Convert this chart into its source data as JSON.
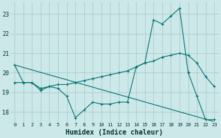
{
  "xlabel": "Humidex (Indice chaleur)",
  "bg_color": "#cce8e8",
  "grid_color": "#aacccc",
  "line_color": "#007070",
  "xlim": [
    -0.5,
    23.5
  ],
  "ylim": [
    17.5,
    23.6
  ],
  "yticks": [
    18,
    19,
    20,
    21,
    22,
    23
  ],
  "xticks": [
    0,
    1,
    2,
    3,
    4,
    5,
    6,
    7,
    8,
    9,
    10,
    11,
    12,
    13,
    14,
    15,
    16,
    17,
    18,
    19,
    20,
    21,
    22,
    23
  ],
  "series": [
    {
      "x": [
        0,
        1,
        2,
        3,
        4,
        5,
        6,
        7,
        8,
        9,
        10,
        11,
        12,
        13,
        14,
        15,
        16,
        17,
        18,
        19,
        20,
        21,
        22,
        23
      ],
      "y": [
        20.4,
        19.5,
        19.5,
        19.1,
        19.3,
        19.2,
        18.8,
        17.7,
        18.1,
        18.5,
        18.4,
        18.4,
        18.5,
        18.5,
        20.3,
        20.5,
        22.7,
        22.5,
        22.9,
        23.3,
        20.0,
        18.8,
        17.6,
        17.6
      ],
      "marker": true
    },
    {
      "x": [
        0,
        1,
        2,
        3,
        4,
        5,
        6,
        7,
        8,
        9,
        10,
        11,
        12,
        13,
        14,
        15,
        16,
        17,
        18,
        19,
        20,
        21,
        22,
        23
      ],
      "y": [
        19.5,
        19.5,
        19.5,
        19.2,
        19.3,
        19.4,
        19.4,
        19.5,
        19.6,
        19.7,
        19.8,
        19.9,
        20.0,
        20.1,
        20.3,
        20.5,
        20.6,
        20.8,
        20.9,
        21.0,
        20.9,
        20.5,
        19.8,
        19.3
      ],
      "marker": true
    },
    {
      "x": [
        0,
        23
      ],
      "y": [
        20.4,
        17.5
      ],
      "marker": false
    }
  ]
}
